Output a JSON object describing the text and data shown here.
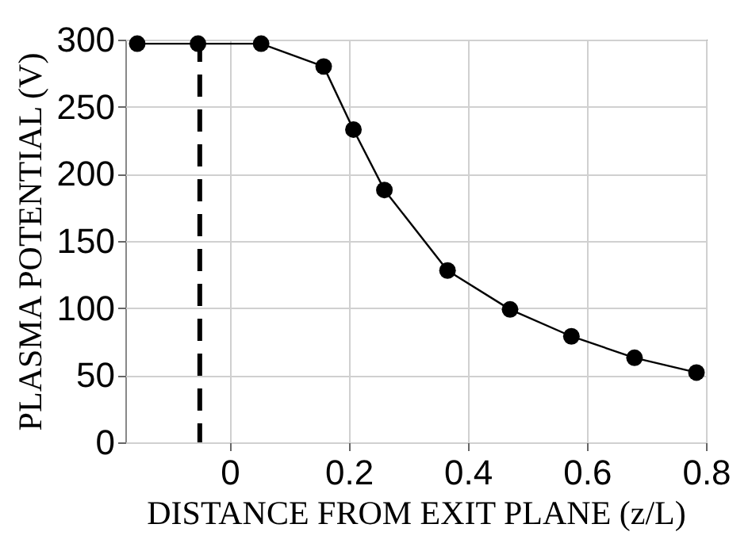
{
  "chart_data": {
    "type": "line",
    "xlabel": "DISTANCE FROM EXIT PLANE (z/L)",
    "ylabel": "PLASMA POTENTIAL (V)",
    "x": [
      -0.155,
      -0.053,
      0.053,
      0.158,
      0.208,
      0.26,
      0.366,
      0.471,
      0.574,
      0.68,
      0.784
    ],
    "series": [
      {
        "color": "#000000",
        "values": [
          297,
          297,
          297,
          280,
          233,
          188,
          128,
          99,
          79,
          63,
          52
        ]
      }
    ],
    "xlim": [
      -0.175,
      0.8
    ],
    "xticks": [
      0,
      0.2,
      0.4,
      0.6,
      0.8
    ],
    "ylim": [
      0,
      300
    ],
    "yticks": [
      0,
      50,
      100,
      150,
      200,
      250,
      300
    ],
    "grid": true,
    "marker": "circle",
    "line_style": "solid",
    "ref_lines": [
      {
        "axis": "x",
        "value": -0.05,
        "color": "#000000",
        "line_style": "dashed"
      }
    ]
  }
}
